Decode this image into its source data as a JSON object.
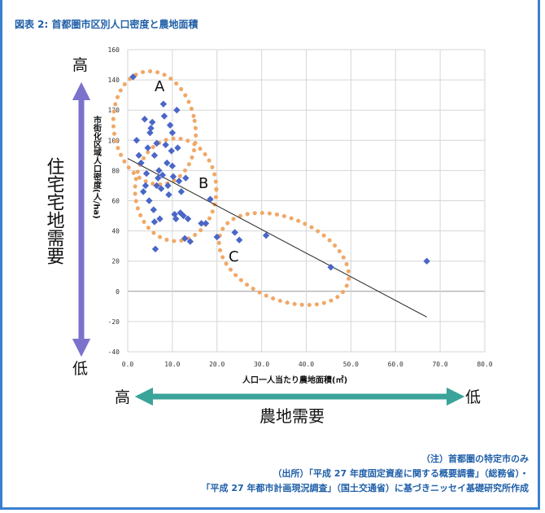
{
  "header": {
    "title": "図表 2: 首都圏市区別人口密度と農地面積"
  },
  "annotations": {
    "housing_demand": "住宅宅地需要",
    "housing_high": "高",
    "housing_low": "低",
    "farm_demand": "農地需要",
    "farm_high": "高",
    "farm_low": "低",
    "cluster_a": "A",
    "cluster_b": "B",
    "cluster_c": "C"
  },
  "notes": {
    "line1": "（注）首都圏の特定市のみ",
    "line2": "（出所）「平成 27 年度固定資産に関する概要調書」（総務省）・",
    "line3": "「平成 27 年都市計画現況調査」（国土交通省）に基づきニッセイ基礎研究所作成"
  },
  "colors": {
    "accent": "#1f5fa8",
    "points": "#4a66c8",
    "arrow_vertical": "#7b72cc",
    "arrow_horizontal": "#3aa39a",
    "cluster_outline": "#f0a868"
  },
  "chart_data": {
    "type": "scatter",
    "xlabel": "人口一人当たり農地面積(㎡)",
    "ylabel": "市街化区域人口密度(人/ha)",
    "xlim": [
      0,
      80
    ],
    "ylim": [
      -40,
      160
    ],
    "xticks": [
      "0.0",
      "10.0",
      "20.0",
      "30.0",
      "40.0",
      "50.0",
      "60.0",
      "70.0",
      "80.0"
    ],
    "yticks": [
      "-40",
      "-20",
      "0",
      "20",
      "40",
      "60",
      "80",
      "100",
      "120",
      "140",
      "160"
    ],
    "grid": true,
    "trendline": {
      "x": [
        0,
        67
      ],
      "y": [
        88,
        -17
      ]
    },
    "points": [
      [
        1.2,
        142
      ],
      [
        2.0,
        100
      ],
      [
        2.5,
        90
      ],
      [
        3.0,
        85
      ],
      [
        3.5,
        66
      ],
      [
        3.8,
        114
      ],
      [
        4.0,
        70
      ],
      [
        4.2,
        78
      ],
      [
        4.5,
        95
      ],
      [
        4.8,
        60
      ],
      [
        5.0,
        105
      ],
      [
        5.2,
        108
      ],
      [
        5.5,
        112
      ],
      [
        5.8,
        54
      ],
      [
        6.0,
        90
      ],
      [
        6.0,
        46
      ],
      [
        6.2,
        28
      ],
      [
        6.5,
        98
      ],
      [
        6.5,
        70
      ],
      [
        6.8,
        75
      ],
      [
        7.0,
        80
      ],
      [
        7.2,
        48
      ],
      [
        7.5,
        68
      ],
      [
        7.8,
        77
      ],
      [
        8.0,
        124
      ],
      [
        8.2,
        116
      ],
      [
        8.5,
        97
      ],
      [
        8.8,
        85
      ],
      [
        9.0,
        70
      ],
      [
        9.2,
        64
      ],
      [
        9.5,
        110
      ],
      [
        9.8,
        93
      ],
      [
        10.0,
        105
      ],
      [
        10.0,
        83
      ],
      [
        10.2,
        76
      ],
      [
        10.5,
        51
      ],
      [
        10.8,
        48
      ],
      [
        11.0,
        120
      ],
      [
        11.2,
        95
      ],
      [
        11.5,
        73
      ],
      [
        11.8,
        52
      ],
      [
        12.0,
        66
      ],
      [
        12.5,
        50
      ],
      [
        12.8,
        35
      ],
      [
        13.0,
        75
      ],
      [
        13.5,
        48
      ],
      [
        14.0,
        33
      ],
      [
        16.5,
        45
      ],
      [
        17.5,
        45
      ],
      [
        18.5,
        61
      ],
      [
        20.0,
        36
      ],
      [
        24.0,
        39
      ],
      [
        25.0,
        34
      ],
      [
        31.0,
        37
      ],
      [
        45.5,
        16
      ],
      [
        67.0,
        20
      ]
    ]
  }
}
